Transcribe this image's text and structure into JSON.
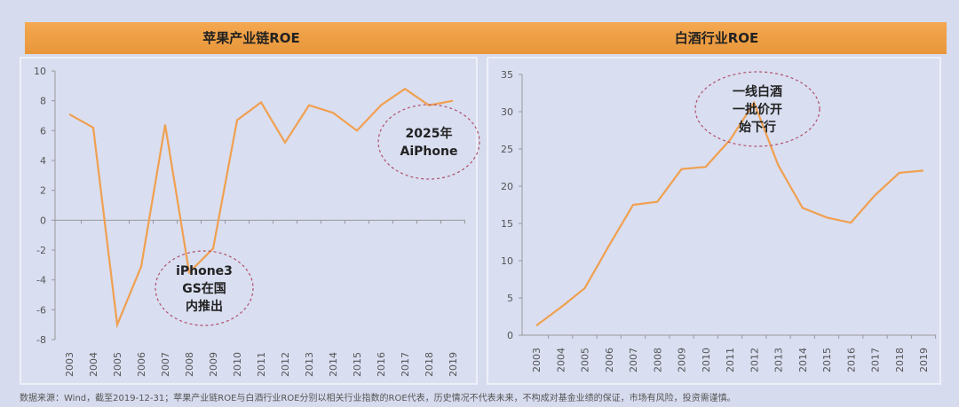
{
  "header": {
    "left_title": "苹果产业链ROE",
    "right_title": "白酒行业ROE",
    "color": "#ec9c42"
  },
  "footnote": "数据来源：Wind，截至2019-12-31；苹果产业链ROE与白酒行业ROE分别以相关行业指数的ROE代表，历史情况不代表未来，不构成对基金业绩的保证，市场有风险，投资需谨慎。",
  "chart_data": [
    {
      "type": "line",
      "title": "苹果产业链ROE",
      "x": [
        "2003",
        "2004",
        "2005",
        "2006",
        "2007",
        "2008",
        "2009",
        "2010",
        "2011",
        "2012",
        "2013",
        "2014",
        "2015",
        "2016",
        "2017",
        "2018",
        "2019"
      ],
      "series": [
        {
          "values": [
            7.1,
            6.2,
            -7.0,
            -3.1,
            6.4,
            -3.5,
            -1.9,
            6.7,
            7.9,
            5.2,
            7.7,
            7.2,
            6.0,
            7.7,
            8.8,
            7.7,
            8.0
          ],
          "color": "#f0a050"
        }
      ],
      "ylim": [
        -8,
        10
      ],
      "yticks": [
        "10",
        "8",
        "6",
        "4",
        "2",
        "0",
        "-2",
        "-4",
        "-6",
        "-8"
      ],
      "grid": false,
      "annotations": [
        {
          "text": [
            "iPhone3",
            "GS在国",
            "内推出"
          ]
        },
        {
          "text": [
            "2025年",
            "AiPhone"
          ]
        }
      ]
    },
    {
      "type": "line",
      "title": "白酒行业ROE",
      "x": [
        "2003",
        "2004",
        "2005",
        "2006",
        "2007",
        "2008",
        "2009",
        "2010",
        "2011",
        "2012",
        "2013",
        "2014",
        "2015",
        "2016",
        "2017",
        "2018",
        "2019"
      ],
      "series": [
        {
          "values": [
            1.3,
            3.7,
            6.3,
            12.0,
            17.5,
            17.9,
            22.3,
            22.6,
            26.2,
            31.2,
            22.8,
            17.1,
            15.8,
            15.1,
            18.8,
            21.8,
            22.1
          ],
          "color": "#f0a050"
        }
      ],
      "ylim": [
        0,
        35
      ],
      "yticks": [
        "35",
        "30",
        "25",
        "20",
        "15",
        "10",
        "5",
        "0"
      ],
      "grid": false,
      "annotations": [
        {
          "text": [
            "一线白酒",
            "一批价开",
            "始下行"
          ]
        }
      ]
    }
  ]
}
